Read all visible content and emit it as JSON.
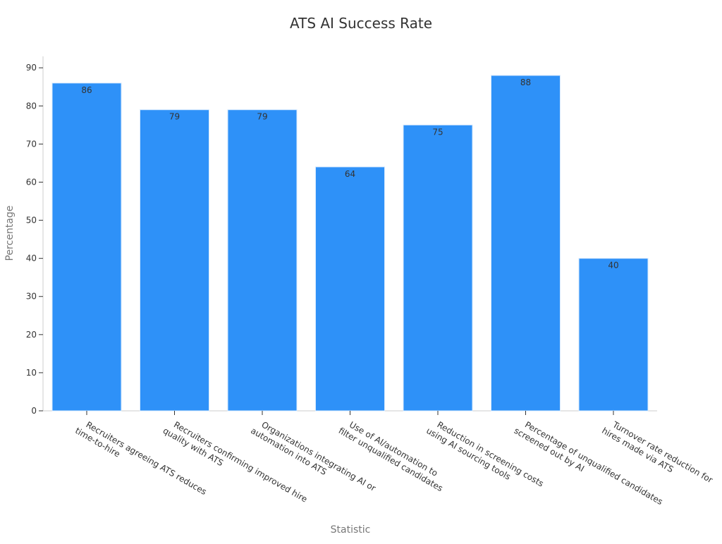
{
  "chart_data": {
    "type": "bar",
    "title": "ATS AI Success Rate",
    "xlabel": "Statistic",
    "ylabel": "Percentage",
    "categories": [
      [
        "Recruiters agreeing ATS reduces",
        "time-to-hire"
      ],
      [
        "Recruiters confirming improved hire",
        "quality with ATS"
      ],
      [
        "Organizations integrating AI or",
        "automation into ATS"
      ],
      [
        "Use of AI/automation to",
        "filter unqualified candidates"
      ],
      [
        "Reduction in screening costs",
        "using AI sourcing tools"
      ],
      [
        "Percentage of unqualified candidates",
        "screened out by AI"
      ],
      [
        "Turnover rate reduction for",
        "hires made via ATS"
      ]
    ],
    "values": [
      86,
      79,
      79,
      64,
      75,
      88,
      40
    ],
    "ylim": [
      0,
      93
    ],
    "yticks": [
      0,
      10,
      20,
      30,
      40,
      50,
      60,
      70,
      80,
      90
    ],
    "grid": false,
    "bar_color": "#2e91f8",
    "bar_edge_color": "#d6e9fd"
  }
}
